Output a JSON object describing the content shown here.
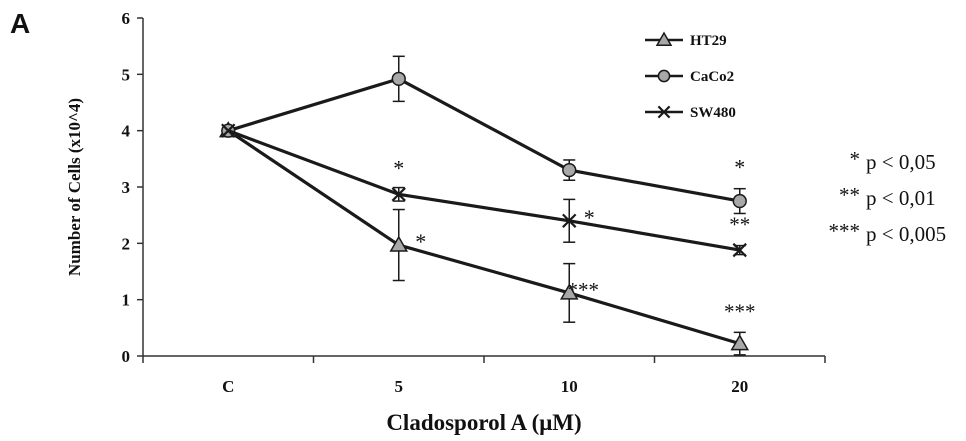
{
  "panel_label": "A",
  "chart_data": {
    "type": "line",
    "categories": [
      "C",
      "5",
      "10",
      "20"
    ],
    "xlabel": "Cladosporol A (μM)",
    "ylabel": "Number of Cells (x10^4)",
    "ylim": [
      0,
      6
    ],
    "yticks": [
      "0",
      "1",
      "2",
      "3",
      "4",
      "5",
      "6"
    ],
    "grid": false,
    "legend_position": "top-right",
    "series": [
      {
        "name": "HT29",
        "marker": "triangle",
        "values": [
          4.0,
          1.97,
          1.12,
          0.22
        ],
        "errors": [
          0,
          0.63,
          0.52,
          0.2
        ],
        "significance": [
          "",
          "*",
          "***",
          "***"
        ]
      },
      {
        "name": "CaCo2",
        "marker": "circle",
        "values": [
          4.0,
          4.92,
          3.3,
          2.75
        ],
        "errors": [
          0,
          0.4,
          0.18,
          0.22
        ],
        "significance": [
          "",
          "",
          "",
          "*"
        ]
      },
      {
        "name": "SW480",
        "marker": "x",
        "values": [
          4.0,
          2.87,
          2.4,
          1.88
        ],
        "errors": [
          0,
          0.12,
          0.38,
          0.08
        ],
        "significance": [
          "",
          "*",
          "*",
          "**"
        ]
      }
    ]
  },
  "significance_key": [
    {
      "stars": "*",
      "label": "p < 0,05"
    },
    {
      "stars": "**",
      "label": "p < 0,01"
    },
    {
      "stars": "***",
      "label": "p < 0,005"
    }
  ],
  "colors": {
    "line": "#1a1a1a",
    "marker_fill": "#a8a8a8",
    "axis": "#333333"
  }
}
